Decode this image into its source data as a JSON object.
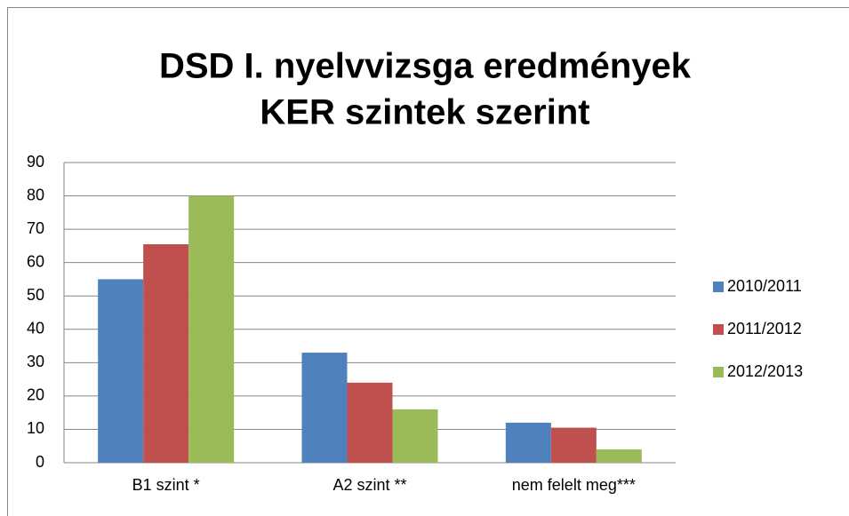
{
  "chart_data": {
    "type": "bar",
    "title": [
      "DSD I. nyelvvizsga eredmények",
      "KER szintek szerint"
    ],
    "categories": [
      "B1 szint *",
      "A2 szint **",
      "nem felelt meg***"
    ],
    "series": [
      {
        "name": "2010/2011",
        "color": "#4f81bd",
        "values": [
          55,
          33,
          12
        ]
      },
      {
        "name": "2011/2012",
        "color": "#c0504d",
        "values": [
          65.5,
          24,
          10.5
        ]
      },
      {
        "name": "2012/2013",
        "color": "#9bbb59",
        "values": [
          80,
          16,
          4
        ]
      }
    ],
    "ylim": [
      0,
      90
    ],
    "yticks": [
      0,
      10,
      20,
      30,
      40,
      50,
      60,
      70,
      80,
      90
    ],
    "grid": true,
    "legend": "right"
  }
}
